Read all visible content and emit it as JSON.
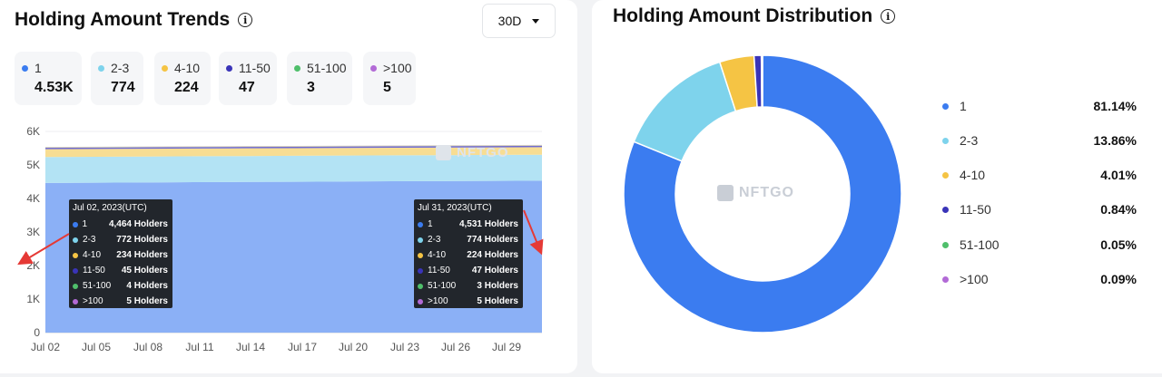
{
  "trends": {
    "title": "Holding Amount Trends",
    "range_selector": "30D",
    "chips": [
      {
        "label": "1",
        "value": "4.53K",
        "color": "#3b7cf0"
      },
      {
        "label": "2-3",
        "value": "774",
        "color": "#7ed3ec"
      },
      {
        "label": "4-10",
        "value": "224",
        "color": "#f5c444"
      },
      {
        "label": "11-50",
        "value": "47",
        "color": "#3a34b8"
      },
      {
        "label": "51-100",
        "value": "3",
        "color": "#4fbf6b"
      },
      {
        "label": ">100",
        "value": "5",
        "color": "#b26ad6"
      }
    ],
    "watermark": "NFTGO",
    "tooltips": [
      {
        "date": "Jul 02, 2023(UTC)",
        "rows": [
          {
            "label": "1",
            "value": "4,464 Holders",
            "color": "#3b7cf0"
          },
          {
            "label": "2-3",
            "value": "772 Holders",
            "color": "#7ed3ec"
          },
          {
            "label": "4-10",
            "value": "234 Holders",
            "color": "#f5c444"
          },
          {
            "label": "11-50",
            "value": "45 Holders",
            "color": "#3a34b8"
          },
          {
            "label": "51-100",
            "value": "4 Holders",
            "color": "#4fbf6b"
          },
          {
            "label": ">100",
            "value": "5 Holders",
            "color": "#b26ad6"
          }
        ]
      },
      {
        "date": "Jul 31, 2023(UTC)",
        "rows": [
          {
            "label": "1",
            "value": "4,531 Holders",
            "color": "#3b7cf0"
          },
          {
            "label": "2-3",
            "value": "774 Holders",
            "color": "#7ed3ec"
          },
          {
            "label": "4-10",
            "value": "224 Holders",
            "color": "#f5c444"
          },
          {
            "label": "11-50",
            "value": "47 Holders",
            "color": "#3a34b8"
          },
          {
            "label": "51-100",
            "value": "3 Holders",
            "color": "#4fbf6b"
          },
          {
            "label": ">100",
            "value": "5 Holders",
            "color": "#b26ad6"
          }
        ]
      }
    ]
  },
  "distribution": {
    "title": "Holding Amount Distribution",
    "watermark": "NFTGO"
  },
  "chart_data": [
    {
      "type": "area",
      "stacked": true,
      "title": "Holding Amount Trends",
      "x_ticks": [
        "Jul 02",
        "Jul 05",
        "Jul 08",
        "Jul 11",
        "Jul 14",
        "Jul 17",
        "Jul 20",
        "Jul 23",
        "Jul 26",
        "Jul 29"
      ],
      "y_ticks": [
        "0",
        "1K",
        "2K",
        "3K",
        "4K",
        "5K",
        "6K"
      ],
      "ylim": [
        0,
        6000
      ],
      "x": [
        "Jul 02",
        "Jul 05",
        "Jul 08",
        "Jul 11",
        "Jul 14",
        "Jul 17",
        "Jul 20",
        "Jul 23",
        "Jul 26",
        "Jul 29",
        "Jul 31"
      ],
      "series": [
        {
          "name": "1",
          "color": "#8bb0f6",
          "values": [
            4464,
            4470,
            4478,
            4486,
            4492,
            4498,
            4505,
            4512,
            4518,
            4525,
            4531
          ]
        },
        {
          "name": "2-3",
          "color": "#b3e3f4",
          "values": [
            772,
            772,
            773,
            773,
            773,
            774,
            774,
            774,
            774,
            774,
            774
          ]
        },
        {
          "name": "4-10",
          "color": "#f7dd93",
          "values": [
            234,
            233,
            232,
            231,
            230,
            229,
            228,
            227,
            226,
            225,
            224
          ]
        },
        {
          "name": "11-50",
          "color": "#6f6bd0",
          "values": [
            45,
            45,
            45,
            46,
            46,
            46,
            46,
            47,
            47,
            47,
            47
          ]
        },
        {
          "name": "51-100",
          "color": "#4fbf6b",
          "values": [
            4,
            4,
            4,
            4,
            3,
            3,
            3,
            3,
            3,
            3,
            3
          ]
        },
        {
          "name": ">100",
          "color": "#b26ad6",
          "values": [
            5,
            5,
            5,
            5,
            5,
            5,
            5,
            5,
            5,
            5,
            5
          ]
        }
      ],
      "grid": "horizontal",
      "legend": "top"
    },
    {
      "type": "pie",
      "donut": true,
      "title": "Holding Amount Distribution",
      "slices": [
        {
          "label": "1",
          "value": 81.14,
          "display": "81.14%",
          "color": "#3b7cf0"
        },
        {
          "label": "2-3",
          "value": 13.86,
          "display": "13.86%",
          "color": "#7ed3ec"
        },
        {
          "label": "4-10",
          "value": 4.01,
          "display": "4.01%",
          "color": "#f5c444"
        },
        {
          "label": "11-50",
          "value": 0.84,
          "display": "0.84%",
          "color": "#3a34b8"
        },
        {
          "label": "51-100",
          "value": 0.05,
          "display": "0.05%",
          "color": "#4fbf6b"
        },
        {
          "label": ">100",
          "value": 0.09,
          "display": "0.09%",
          "color": "#b26ad6"
        }
      ],
      "legend": "right"
    }
  ]
}
